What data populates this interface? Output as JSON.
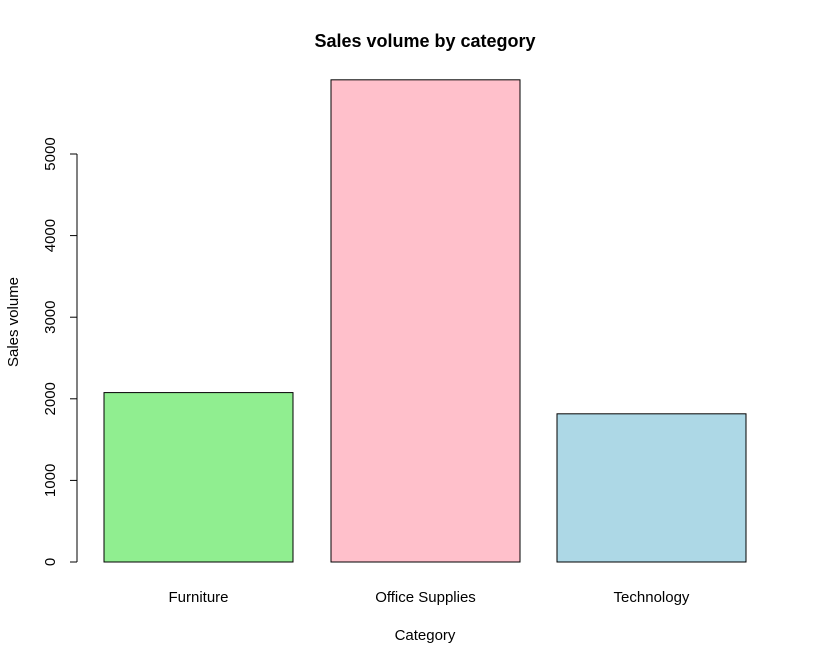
{
  "chart_data": {
    "type": "bar",
    "title": "Sales volume by category",
    "xlabel": "Category",
    "ylabel": "Sales volume",
    "categories": [
      "Furniture",
      "Office Supplies",
      "Technology"
    ],
    "values": [
      2076,
      5909,
      1816
    ],
    "colors": [
      "#90ee90",
      "#ffc0cb",
      "#add8e6"
    ],
    "ylim": [
      0,
      6000
    ],
    "yticks": [
      0,
      1000,
      2000,
      3000,
      4000,
      5000
    ],
    "grid": false,
    "legend": "none"
  }
}
